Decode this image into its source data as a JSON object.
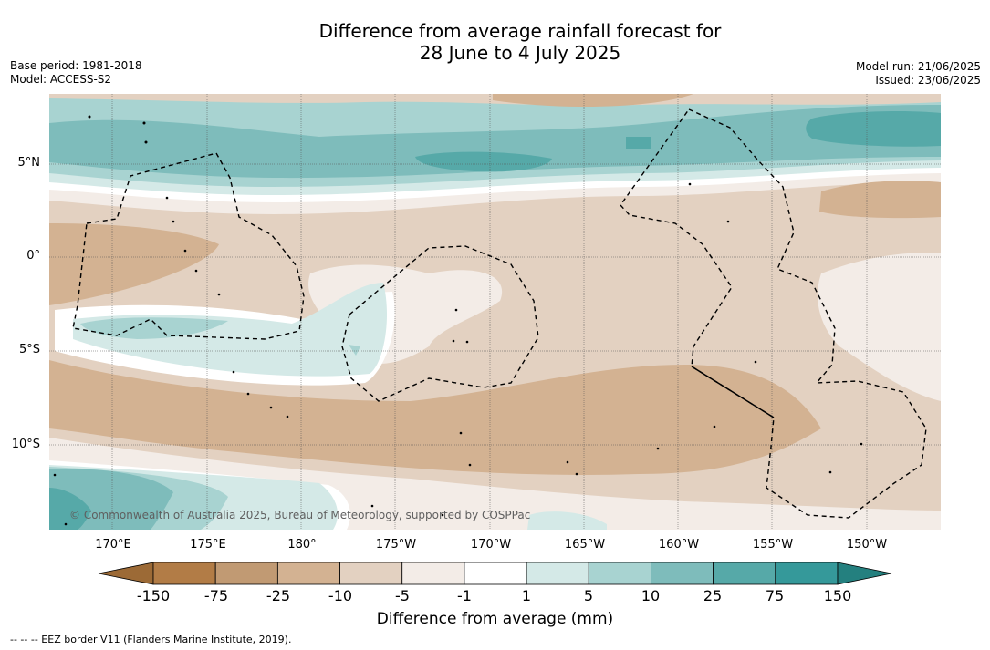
{
  "title": {
    "line1": "Difference from average rainfall forecast for",
    "line2": "28 June to 4 July 2025"
  },
  "meta_left": {
    "base_period": "Base period: 1981-2018",
    "model": "Model: ACCESS-S2"
  },
  "meta_right": {
    "model_run": "Model run: 21/06/2025",
    "issued": "Issued: 23/06/2025"
  },
  "map": {
    "lat_labels": [
      "5°N",
      "0°",
      "5°S",
      "10°S"
    ],
    "lon_labels": [
      "170°E",
      "175°E",
      "180°",
      "175°W",
      "170°W",
      "165°W",
      "160°W",
      "155°W",
      "150°W"
    ],
    "copyright": "© Commonwealth of Australia 2025, Bureau of Meteorology, supported by COSPPac",
    "border_color": "#000000"
  },
  "colorbar": {
    "labels": [
      "-150",
      "-75",
      "-25",
      "-10",
      "-5",
      "-1",
      "1",
      "5",
      "10",
      "25",
      "75",
      "150"
    ],
    "colors": [
      "#9c6a36",
      "#b27c46",
      "#c19a73",
      "#d3b292",
      "#e3d1c1",
      "#f3ece7",
      "#ffffff",
      "#d4e9e7",
      "#a8d3d1",
      "#7ebcbb",
      "#56a9a8",
      "#35999a",
      "#24807f"
    ],
    "title": "Difference from average (mm)"
  },
  "footnote": "--  --  -- EEZ border V11 (Flanders Marine Institute, 2019)."
}
